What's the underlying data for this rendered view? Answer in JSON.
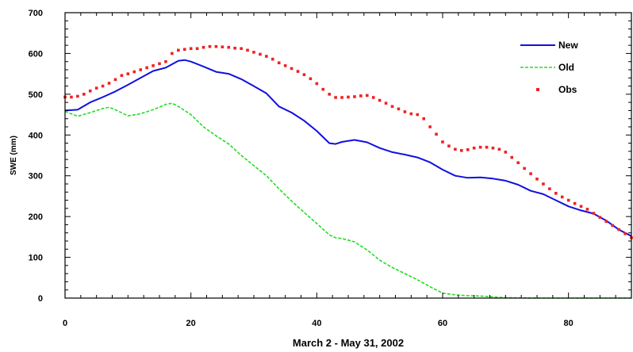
{
  "chart_data": {
    "type": "line",
    "title": "",
    "xlabel": "March 2 - May 31, 2002",
    "ylabel": "SWE (mm)",
    "xlim": [
      0,
      90
    ],
    "ylim": [
      0,
      700
    ],
    "xticks": [
      0,
      20,
      40,
      60,
      80
    ],
    "yticks": [
      0,
      100,
      200,
      300,
      400,
      500,
      600,
      700
    ],
    "grid": false,
    "legend": "top-right",
    "series": [
      {
        "name": "New",
        "style": "solid",
        "color": "#1010e0",
        "x": [
          0,
          2,
          4,
          6,
          8,
          10,
          12,
          14,
          16,
          18,
          19,
          20,
          22,
          24,
          26,
          28,
          30,
          32,
          34,
          36,
          38,
          40,
          42,
          43,
          44,
          46,
          48,
          50,
          52,
          54,
          56,
          58,
          60,
          62,
          64,
          66,
          68,
          70,
          72,
          74,
          76,
          78,
          80,
          82,
          84,
          86,
          88,
          90
        ],
        "values": [
          460,
          462,
          480,
          493,
          507,
          523,
          540,
          557,
          565,
          582,
          584,
          580,
          568,
          555,
          550,
          537,
          520,
          502,
          470,
          455,
          435,
          410,
          380,
          378,
          383,
          388,
          382,
          368,
          358,
          352,
          345,
          333,
          315,
          300,
          295,
          296,
          293,
          288,
          278,
          263,
          255,
          240,
          225,
          215,
          207,
          190,
          168,
          152
        ]
      },
      {
        "name": "Old",
        "style": "dashed",
        "color": "#22dd22",
        "x": [
          0,
          2,
          4,
          6,
          7,
          8,
          10,
          12,
          14,
          16,
          17,
          18,
          20,
          22,
          24,
          26,
          28,
          30,
          32,
          34,
          36,
          38,
          40,
          42,
          43,
          44,
          46,
          48,
          50,
          52,
          54,
          56,
          58,
          60,
          62,
          64,
          66,
          68,
          70,
          75,
          80,
          85,
          90
        ],
        "values": [
          458,
          446,
          455,
          465,
          468,
          462,
          447,
          452,
          462,
          475,
          478,
          470,
          450,
          420,
          398,
          378,
          350,
          325,
          300,
          268,
          238,
          210,
          183,
          155,
          148,
          146,
          138,
          118,
          93,
          75,
          60,
          45,
          28,
          12,
          8,
          6,
          5,
          3,
          1,
          0,
          0,
          0,
          0
        ]
      },
      {
        "name": "Obs",
        "style": "markers",
        "color": "#ee2222",
        "x": [
          0,
          1,
          2,
          3,
          4,
          5,
          6,
          7,
          8,
          9,
          10,
          11,
          12,
          13,
          14,
          15,
          16,
          17,
          18,
          19,
          20,
          21,
          22,
          23,
          24,
          25,
          26,
          27,
          28,
          29,
          30,
          31,
          32,
          33,
          34,
          35,
          36,
          37,
          38,
          39,
          40,
          41,
          42,
          43,
          44,
          45,
          46,
          47,
          48,
          49,
          50,
          51,
          52,
          53,
          54,
          55,
          56,
          57,
          58,
          59,
          60,
          61,
          62,
          63,
          64,
          65,
          66,
          67,
          68,
          69,
          70,
          71,
          72,
          73,
          74,
          75,
          76,
          77,
          78,
          79,
          80,
          81,
          82,
          83,
          84,
          85,
          86,
          87,
          88,
          89,
          90
        ],
        "values": [
          493,
          493,
          495,
          500,
          508,
          515,
          520,
          527,
          536,
          546,
          550,
          555,
          560,
          565,
          570,
          575,
          580,
          600,
          608,
          610,
          612,
          612,
          615,
          617,
          617,
          616,
          615,
          613,
          612,
          608,
          603,
          598,
          593,
          586,
          577,
          570,
          563,
          556,
          548,
          538,
          526,
          512,
          500,
          492,
          492,
          493,
          494,
          496,
          497,
          492,
          485,
          478,
          470,
          464,
          457,
          452,
          450,
          440,
          420,
          402,
          383,
          373,
          365,
          362,
          364,
          368,
          370,
          370,
          368,
          365,
          358,
          345,
          332,
          318,
          305,
          292,
          280,
          268,
          257,
          248,
          240,
          232,
          225,
          218,
          208,
          198,
          188,
          178,
          168,
          158,
          148
        ]
      }
    ]
  }
}
